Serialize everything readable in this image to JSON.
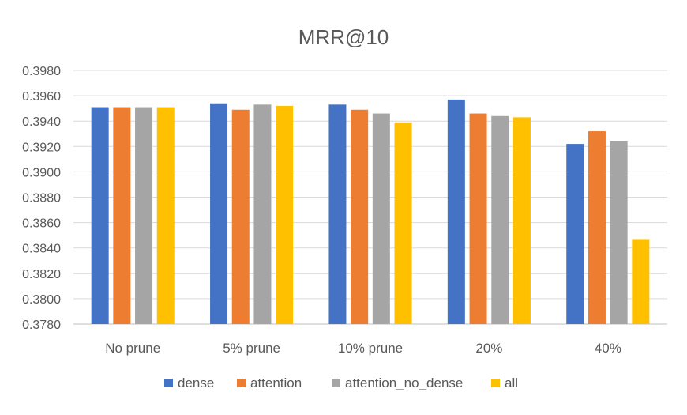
{
  "chart_data": {
    "type": "bar",
    "title": "MRR@10",
    "xlabel": "",
    "ylabel": "",
    "categories": [
      "No prune",
      "5% prune",
      "10% prune",
      "20%",
      "40%"
    ],
    "series": [
      {
        "name": "dense",
        "color": "#4472C4",
        "values": [
          0.3951,
          0.3954,
          0.3953,
          0.3957,
          0.3922
        ]
      },
      {
        "name": "attention",
        "color": "#ED7D31",
        "values": [
          0.3951,
          0.3949,
          0.3949,
          0.3946,
          0.3932
        ]
      },
      {
        "name": "attention_no_dense",
        "color": "#A5A5A5",
        "values": [
          0.3951,
          0.3953,
          0.3946,
          0.3944,
          0.3924
        ]
      },
      {
        "name": "all",
        "color": "#FFC000",
        "values": [
          0.3951,
          0.3952,
          0.3939,
          0.3943,
          0.3847
        ]
      }
    ],
    "ylim": [
      0.378,
      0.398
    ],
    "yticks": [
      "0.3780",
      "0.3800",
      "0.3820",
      "0.3840",
      "0.3860",
      "0.3880",
      "0.3900",
      "0.3920",
      "0.3940",
      "0.3960",
      "0.3980"
    ],
    "grid": true,
    "legend_position": "bottom"
  }
}
